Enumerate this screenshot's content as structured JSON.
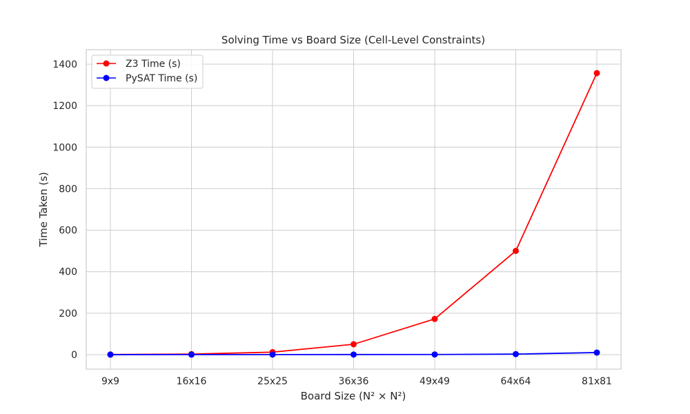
{
  "chart_data": {
    "type": "line",
    "title": "Solving Time vs Board Size (Cell-Level Constraints)",
    "xlabel": "Board Size (N² × N²)",
    "ylabel": "Time Taken (s)",
    "categories": [
      "9x9",
      "16x16",
      "25x25",
      "36x36",
      "49x49",
      "64x64",
      "81x81"
    ],
    "ylim": [
      -70,
      1470
    ],
    "yticks": [
      0,
      200,
      400,
      600,
      800,
      1000,
      1200,
      1400
    ],
    "grid": true,
    "legend_position": "top-left",
    "series": [
      {
        "name": "Z3 Time (s)",
        "color": "#ff0000",
        "values": [
          0.5,
          2.5,
          12,
          50,
          172,
          500,
          1357
        ]
      },
      {
        "name": "PySAT Time (s)",
        "color": "#0000ff",
        "values": [
          0.1,
          0.2,
          0.3,
          0.4,
          0.7,
          2.5,
          10
        ]
      }
    ]
  }
}
